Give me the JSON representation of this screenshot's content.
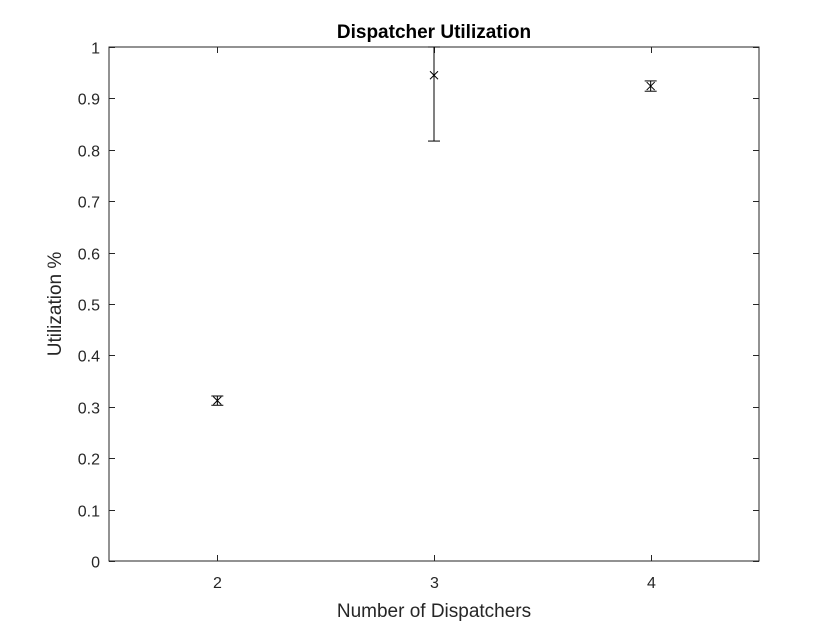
{
  "chart_data": {
    "type": "scatter",
    "title": "Dispatcher Utilization",
    "xlabel": "Number of Dispatchers",
    "ylabel": "Utilization %",
    "xlim": [
      1.5,
      4.5
    ],
    "ylim": [
      0,
      1
    ],
    "xticks": [
      2,
      3,
      4
    ],
    "yticks": [
      0,
      0.1,
      0.2,
      0.3,
      0.4,
      0.5,
      0.6,
      0.7,
      0.8,
      0.9,
      1
    ],
    "marker": "x",
    "grid": false,
    "points": [
      {
        "x": 2,
        "y": 0.312,
        "ylow": 0.303,
        "yhigh": 0.321
      },
      {
        "x": 3,
        "y": 0.945,
        "ylow": 0.817,
        "yhigh": 1.0
      },
      {
        "x": 4,
        "y": 0.924,
        "ylow": 0.914,
        "yhigh": 0.934
      }
    ]
  }
}
